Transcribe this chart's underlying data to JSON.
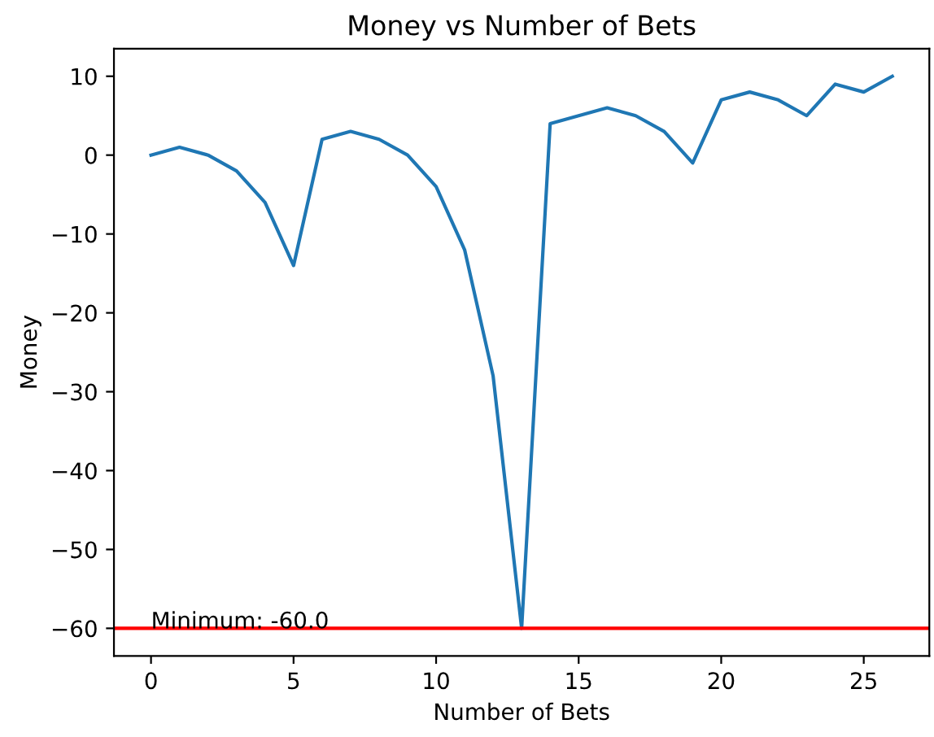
{
  "chart_data": {
    "type": "line",
    "title": "Money vs Number of Bets",
    "xlabel": "Number of Bets",
    "ylabel": "Money",
    "x": [
      0,
      1,
      2,
      3,
      4,
      5,
      6,
      7,
      8,
      9,
      10,
      11,
      12,
      13,
      14,
      15,
      16,
      17,
      18,
      19,
      20,
      21,
      22,
      23,
      24,
      25,
      26
    ],
    "series": [
      {
        "color": "#1f77b4",
        "values": [
          0,
          1,
          0,
          -2,
          -6,
          -14,
          2,
          3,
          2,
          0,
          -4,
          -12,
          -28,
          -60,
          4,
          5,
          6,
          5,
          3,
          -1,
          7,
          8,
          7,
          5,
          9,
          8,
          10
        ]
      }
    ],
    "xlim": [
      -1.3,
      27.3
    ],
    "xticks": [
      0,
      5,
      10,
      15,
      20,
      25
    ],
    "ylim": [
      -63.5,
      13.5
    ],
    "yticks": [
      {
        "value": -60,
        "label": "−60"
      },
      {
        "value": -50,
        "label": "−50"
      },
      {
        "value": -40,
        "label": "−40"
      },
      {
        "value": -30,
        "label": "−30"
      },
      {
        "value": -20,
        "label": "−20"
      },
      {
        "value": -10,
        "label": "−10"
      },
      0,
      10
    ],
    "ref_lines": [
      {
        "axis": "y",
        "value": -60,
        "color": "#ff0000"
      }
    ],
    "annotations": [
      {
        "text": "Minimum: -60.0",
        "x": 0,
        "y": -60
      }
    ]
  }
}
